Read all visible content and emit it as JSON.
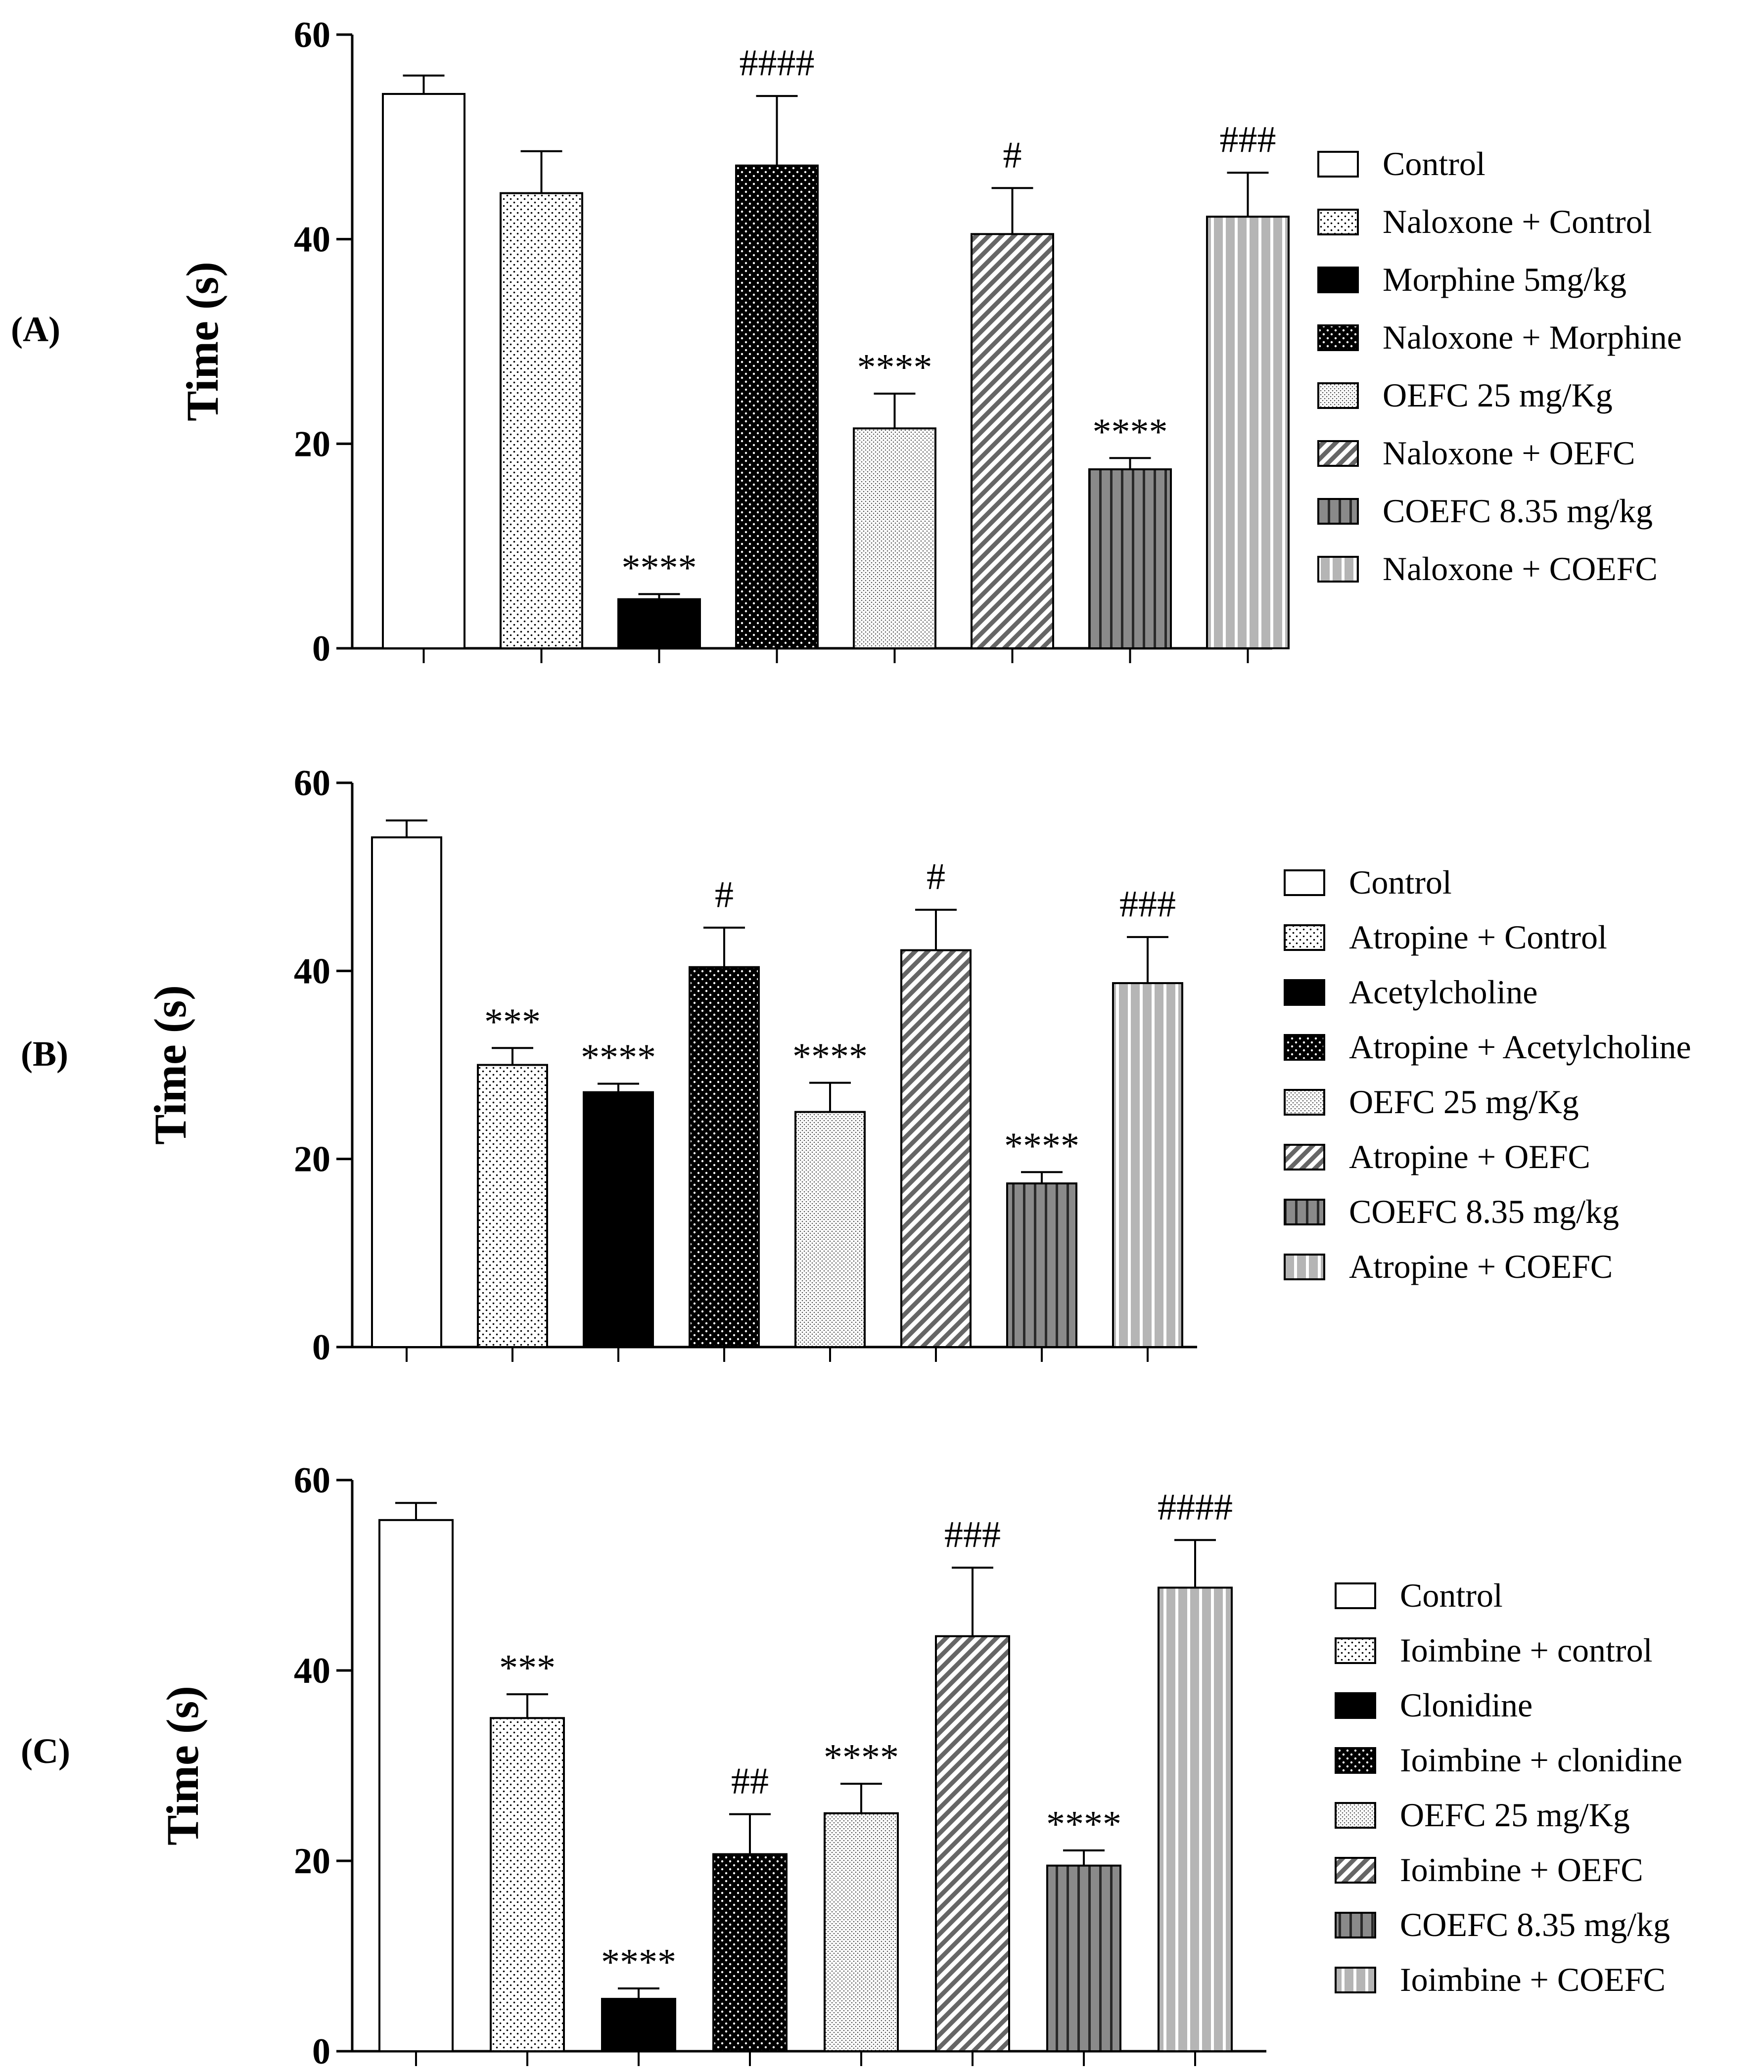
{
  "chart_data": [
    {
      "type": "bar",
      "panel_label": "(A)",
      "ylabel": "Time (s)",
      "ylim": [
        0,
        60
      ],
      "yticks": [
        "0",
        "20",
        "40",
        "60"
      ],
      "legend_position": "right",
      "categories": [
        "Control",
        "Naloxone + Control",
        "Morphine 5mg/kg",
        "Naloxone + Morphine",
        "OEFC 25 mg/Kg",
        "Naloxone + OEFC",
        "COEFC 8.35 mg/kg",
        "Naloxone  + COEFC"
      ],
      "values": [
        54.2,
        44.5,
        4.8,
        47.2,
        21.5,
        40.5,
        17.5,
        42.2
      ],
      "errors": [
        1.8,
        4.1,
        0.5,
        6.8,
        3.4,
        4.5,
        1.1,
        4.3
      ],
      "annotations": [
        "",
        "",
        "****",
        "####",
        "****",
        "#",
        "****",
        "###"
      ]
    },
    {
      "type": "bar",
      "panel_label": "(B)",
      "ylabel": "Time (s)",
      "ylim": [
        0,
        60
      ],
      "yticks": [
        "0",
        "20",
        "40",
        "60"
      ],
      "legend_position": "right",
      "categories": [
        "Control",
        "Atropine + Control",
        "Acetylcholine",
        "Atropine + Acetylcholine",
        "OEFC 25 mg/Kg",
        "Atropine + OEFC",
        "COEFC 8.35 mg/kg",
        "Atropine + COEFC"
      ],
      "values": [
        54.2,
        30.0,
        27.1,
        40.4,
        25.0,
        42.2,
        17.4,
        38.7
      ],
      "errors": [
        1.8,
        1.8,
        0.9,
        4.2,
        3.1,
        4.3,
        1.2,
        4.9
      ],
      "annotations": [
        "",
        "***",
        "****",
        "#",
        "****",
        "#",
        "****",
        "###"
      ]
    },
    {
      "type": "bar",
      "panel_label": "(C)",
      "ylabel": "Time (s)",
      "ylim": [
        0,
        60
      ],
      "yticks": [
        "0",
        "20",
        "40",
        "60"
      ],
      "legend_position": "right",
      "categories": [
        "Control",
        "Ioimbine + control",
        "Clonidine",
        "Ioimbine + clonidine",
        "OEFC 25 mg/Kg",
        "Ioimbine + OEFC",
        "COEFC 8.35 mg/kg",
        "Ioimbine + COEFC"
      ],
      "values": [
        55.8,
        35.0,
        5.5,
        20.7,
        25.0,
        43.6,
        19.5,
        48.7
      ],
      "errors": [
        1.8,
        2.5,
        1.1,
        4.2,
        3.1,
        7.2,
        1.6,
        5.0
      ],
      "annotations": [
        "",
        "***",
        "****",
        "##",
        "****",
        "###",
        "****",
        "####"
      ]
    }
  ]
}
